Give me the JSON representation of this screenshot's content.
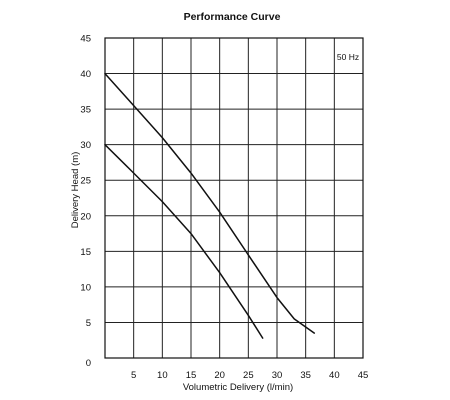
{
  "chart_data": {
    "type": "line",
    "title": "Performance Curve",
    "xlabel": "Volumetric Delivery (l/min)",
    "ylabel": "Delivery Head (m)",
    "annotation": "50 Hz",
    "xlim": [
      0,
      45
    ],
    "ylim": [
      0,
      45
    ],
    "xticks": [
      0,
      5,
      10,
      15,
      20,
      25,
      30,
      35,
      40,
      45
    ],
    "yticks": [
      0,
      5,
      10,
      15,
      20,
      25,
      30,
      35,
      40,
      45
    ],
    "grid": true,
    "legend": "none",
    "series": [
      {
        "x": [
          0,
          5,
          10,
          15,
          20,
          25,
          30,
          33,
          36.5
        ],
        "y": [
          40,
          35.5,
          31,
          26,
          20.5,
          14.5,
          8.5,
          5.5,
          3.5
        ],
        "color": "#111111"
      },
      {
        "x": [
          0,
          5,
          10,
          15,
          20,
          25,
          27.5
        ],
        "y": [
          30,
          26,
          22,
          17.5,
          12,
          6,
          2.8
        ],
        "color": "#111111"
      }
    ]
  }
}
